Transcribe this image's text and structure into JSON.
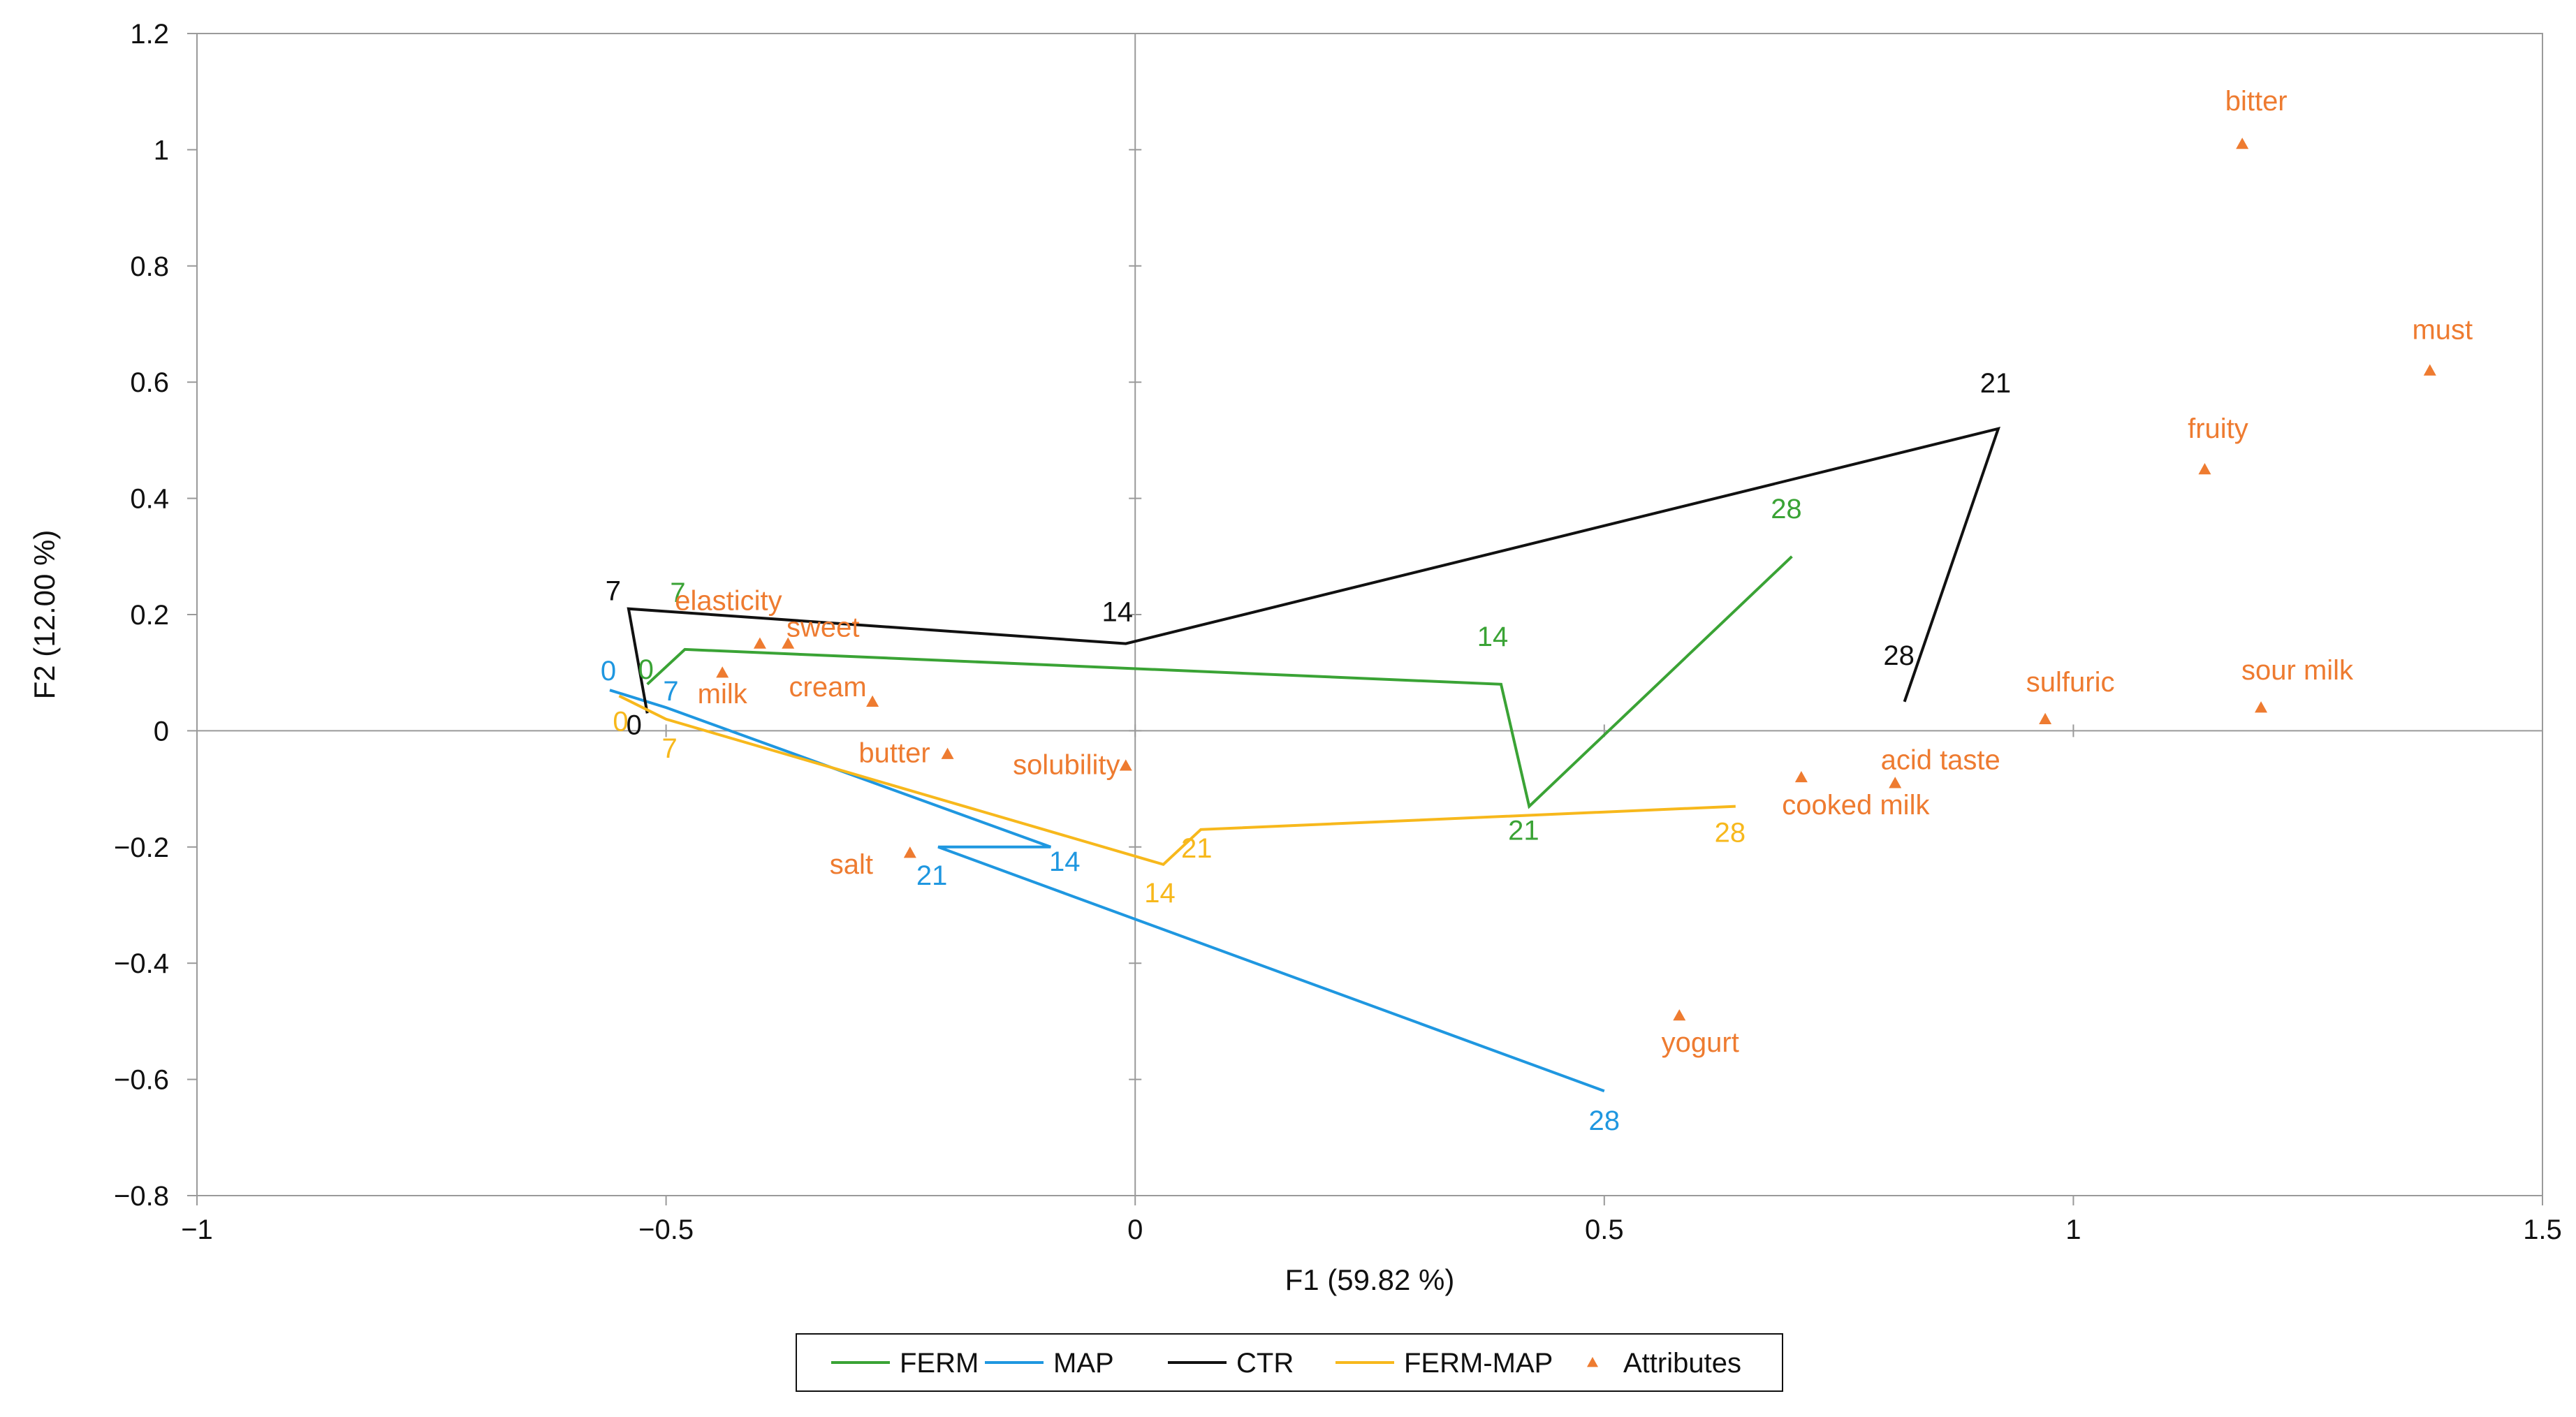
{
  "chart_data": {
    "type": "scatter",
    "xlabel": "F1 (59.82 %)",
    "ylabel": "F2 (12.00 %)",
    "xlim": [
      -1,
      1.5
    ],
    "ylim": [
      -0.8,
      1.2
    ],
    "x_ticks": [
      -1,
      -0.5,
      0,
      0.5,
      1,
      1.5
    ],
    "x_tick_labels": [
      "−1",
      "−0.5",
      "0",
      "0.5",
      "1",
      "1.5"
    ],
    "y_ticks": [
      1.2,
      1,
      0.8,
      0.6,
      0.4,
      0.2,
      0,
      -0.2,
      -0.4,
      -0.6,
      -0.8
    ],
    "y_tick_labels": [
      "1.2",
      "1",
      "0.8",
      "0.6",
      "0.4",
      "0.2",
      "0",
      "−0.2",
      "−0.4",
      "−0.6",
      "−0.8"
    ],
    "grid": false,
    "legend_position": "bottom",
    "series": [
      {
        "name": "FERM",
        "type": "line",
        "color": "#3aa335",
        "points": [
          {
            "label": "0",
            "x": -0.52,
            "y": 0.08
          },
          {
            "label": "7",
            "x": -0.48,
            "y": 0.14
          },
          {
            "label": "14",
            "x": 0.39,
            "y": 0.08
          },
          {
            "label": "21",
            "x": 0.42,
            "y": -0.13
          },
          {
            "label": "28",
            "x": 0.7,
            "y": 0.3
          }
        ]
      },
      {
        "name": "MAP",
        "type": "line",
        "color": "#1f97e0",
        "points": [
          {
            "label": "0",
            "x": -0.56,
            "y": 0.07
          },
          {
            "label": "7",
            "x": -0.5,
            "y": 0.04
          },
          {
            "label": "14",
            "x": -0.09,
            "y": -0.2
          },
          {
            "label": "21",
            "x": -0.21,
            "y": -0.2
          },
          {
            "label": "28",
            "x": 0.5,
            "y": -0.62
          }
        ]
      },
      {
        "name": "CTR",
        "type": "line",
        "color": "#111111",
        "points": [
          {
            "label": "0",
            "x": -0.52,
            "y": 0.03
          },
          {
            "label": "7",
            "x": -0.54,
            "y": 0.21
          },
          {
            "label": "14",
            "x": -0.01,
            "y": 0.15
          },
          {
            "label": "21",
            "x": 0.92,
            "y": 0.52
          },
          {
            "label": "28",
            "x": 0.82,
            "y": 0.05
          }
        ]
      },
      {
        "name": "FERM-MAP",
        "type": "line",
        "color": "#f7b81c",
        "points": [
          {
            "label": "0",
            "x": -0.55,
            "y": 0.06
          },
          {
            "label": "7",
            "x": -0.5,
            "y": 0.02
          },
          {
            "label": "14",
            "x": 0.03,
            "y": -0.23
          },
          {
            "label": "21",
            "x": 0.07,
            "y": -0.17
          },
          {
            "label": "28",
            "x": 0.64,
            "y": -0.13
          }
        ]
      },
      {
        "name": "Attributes",
        "type": "scatter",
        "marker": "triangle",
        "color": "#ee7b30",
        "points": [
          {
            "label": "bitter",
            "x": 1.18,
            "y": 1.01
          },
          {
            "label": "must",
            "x": 1.38,
            "y": 0.62
          },
          {
            "label": "fruity",
            "x": 1.14,
            "y": 0.45
          },
          {
            "label": "sulfuric",
            "x": 0.97,
            "y": 0.02
          },
          {
            "label": "sour milk",
            "x": 1.2,
            "y": 0.04
          },
          {
            "label": "acid taste",
            "x": 0.81,
            "y": -0.09
          },
          {
            "label": "cooked milk",
            "x": 0.71,
            "y": -0.08
          },
          {
            "label": "yogurt",
            "x": 0.58,
            "y": -0.49
          },
          {
            "label": "solubility",
            "x": -0.01,
            "y": -0.06
          },
          {
            "label": "butter",
            "x": -0.2,
            "y": -0.04
          },
          {
            "label": "salt",
            "x": -0.24,
            "y": -0.21
          },
          {
            "label": "cream",
            "x": -0.28,
            "y": 0.05
          },
          {
            "label": "sweet",
            "x": -0.37,
            "y": 0.15
          },
          {
            "label": "elasticity",
            "x": -0.4,
            "y": 0.15
          },
          {
            "label": "milk",
            "x": -0.44,
            "y": 0.1
          }
        ]
      }
    ]
  }
}
